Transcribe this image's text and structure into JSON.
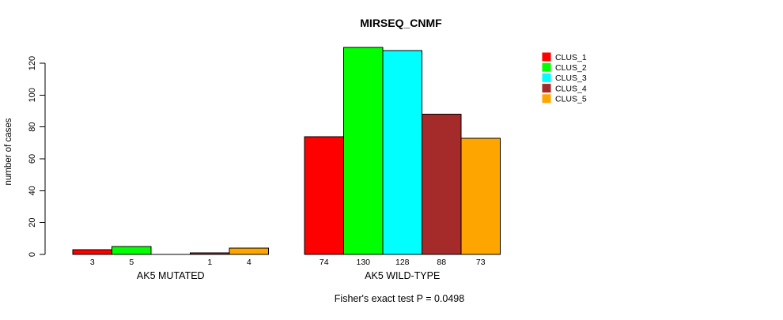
{
  "title": "MIRSEQ_CNMF",
  "footer": "Fisher's exact test P = 0.0498",
  "y_axis": {
    "label": "number of cases",
    "ticks": [
      "0",
      "20",
      "40",
      "60",
      "80",
      "100",
      "120"
    ]
  },
  "x_axis": {
    "group_labels": [
      "AK5 MUTATED",
      "AK5 WILD-TYPE"
    ]
  },
  "legend": {
    "items": [
      {
        "label": "CLUS_1",
        "color": "#FF0000"
      },
      {
        "label": "CLUS_2",
        "color": "#00FF00"
      },
      {
        "label": "CLUS_3",
        "color": "#00FFFF"
      },
      {
        "label": "CLUS_4",
        "color": "#A52A2A"
      },
      {
        "label": "CLUS_5",
        "color": "#FFA500"
      }
    ]
  },
  "chart_data": {
    "type": "bar",
    "title": "MIRSEQ_CNMF",
    "xlabel": "",
    "ylabel": "number of cases",
    "ylim": [
      0,
      130
    ],
    "yticks": [
      0,
      20,
      40,
      60,
      80,
      100,
      120
    ],
    "grid": false,
    "legend_position": "right",
    "series_labels": [
      "CLUS_1",
      "CLUS_2",
      "CLUS_3",
      "CLUS_4",
      "CLUS_5"
    ],
    "series_colors": [
      "#FF0000",
      "#00FF00",
      "#00FFFF",
      "#A52A2A",
      "#FFA500"
    ],
    "groups": [
      {
        "label": "AK5 MUTATED",
        "values": [
          3,
          5,
          0,
          1,
          4
        ],
        "bar_labels": [
          "3",
          "5",
          "",
          "1",
          "4"
        ]
      },
      {
        "label": "AK5 WILD-TYPE",
        "values": [
          74,
          130,
          128,
          88,
          73
        ],
        "bar_labels": [
          "74",
          "130",
          "128",
          "88",
          "73"
        ]
      }
    ],
    "annotation": "Fisher's exact test P = 0.0498"
  }
}
